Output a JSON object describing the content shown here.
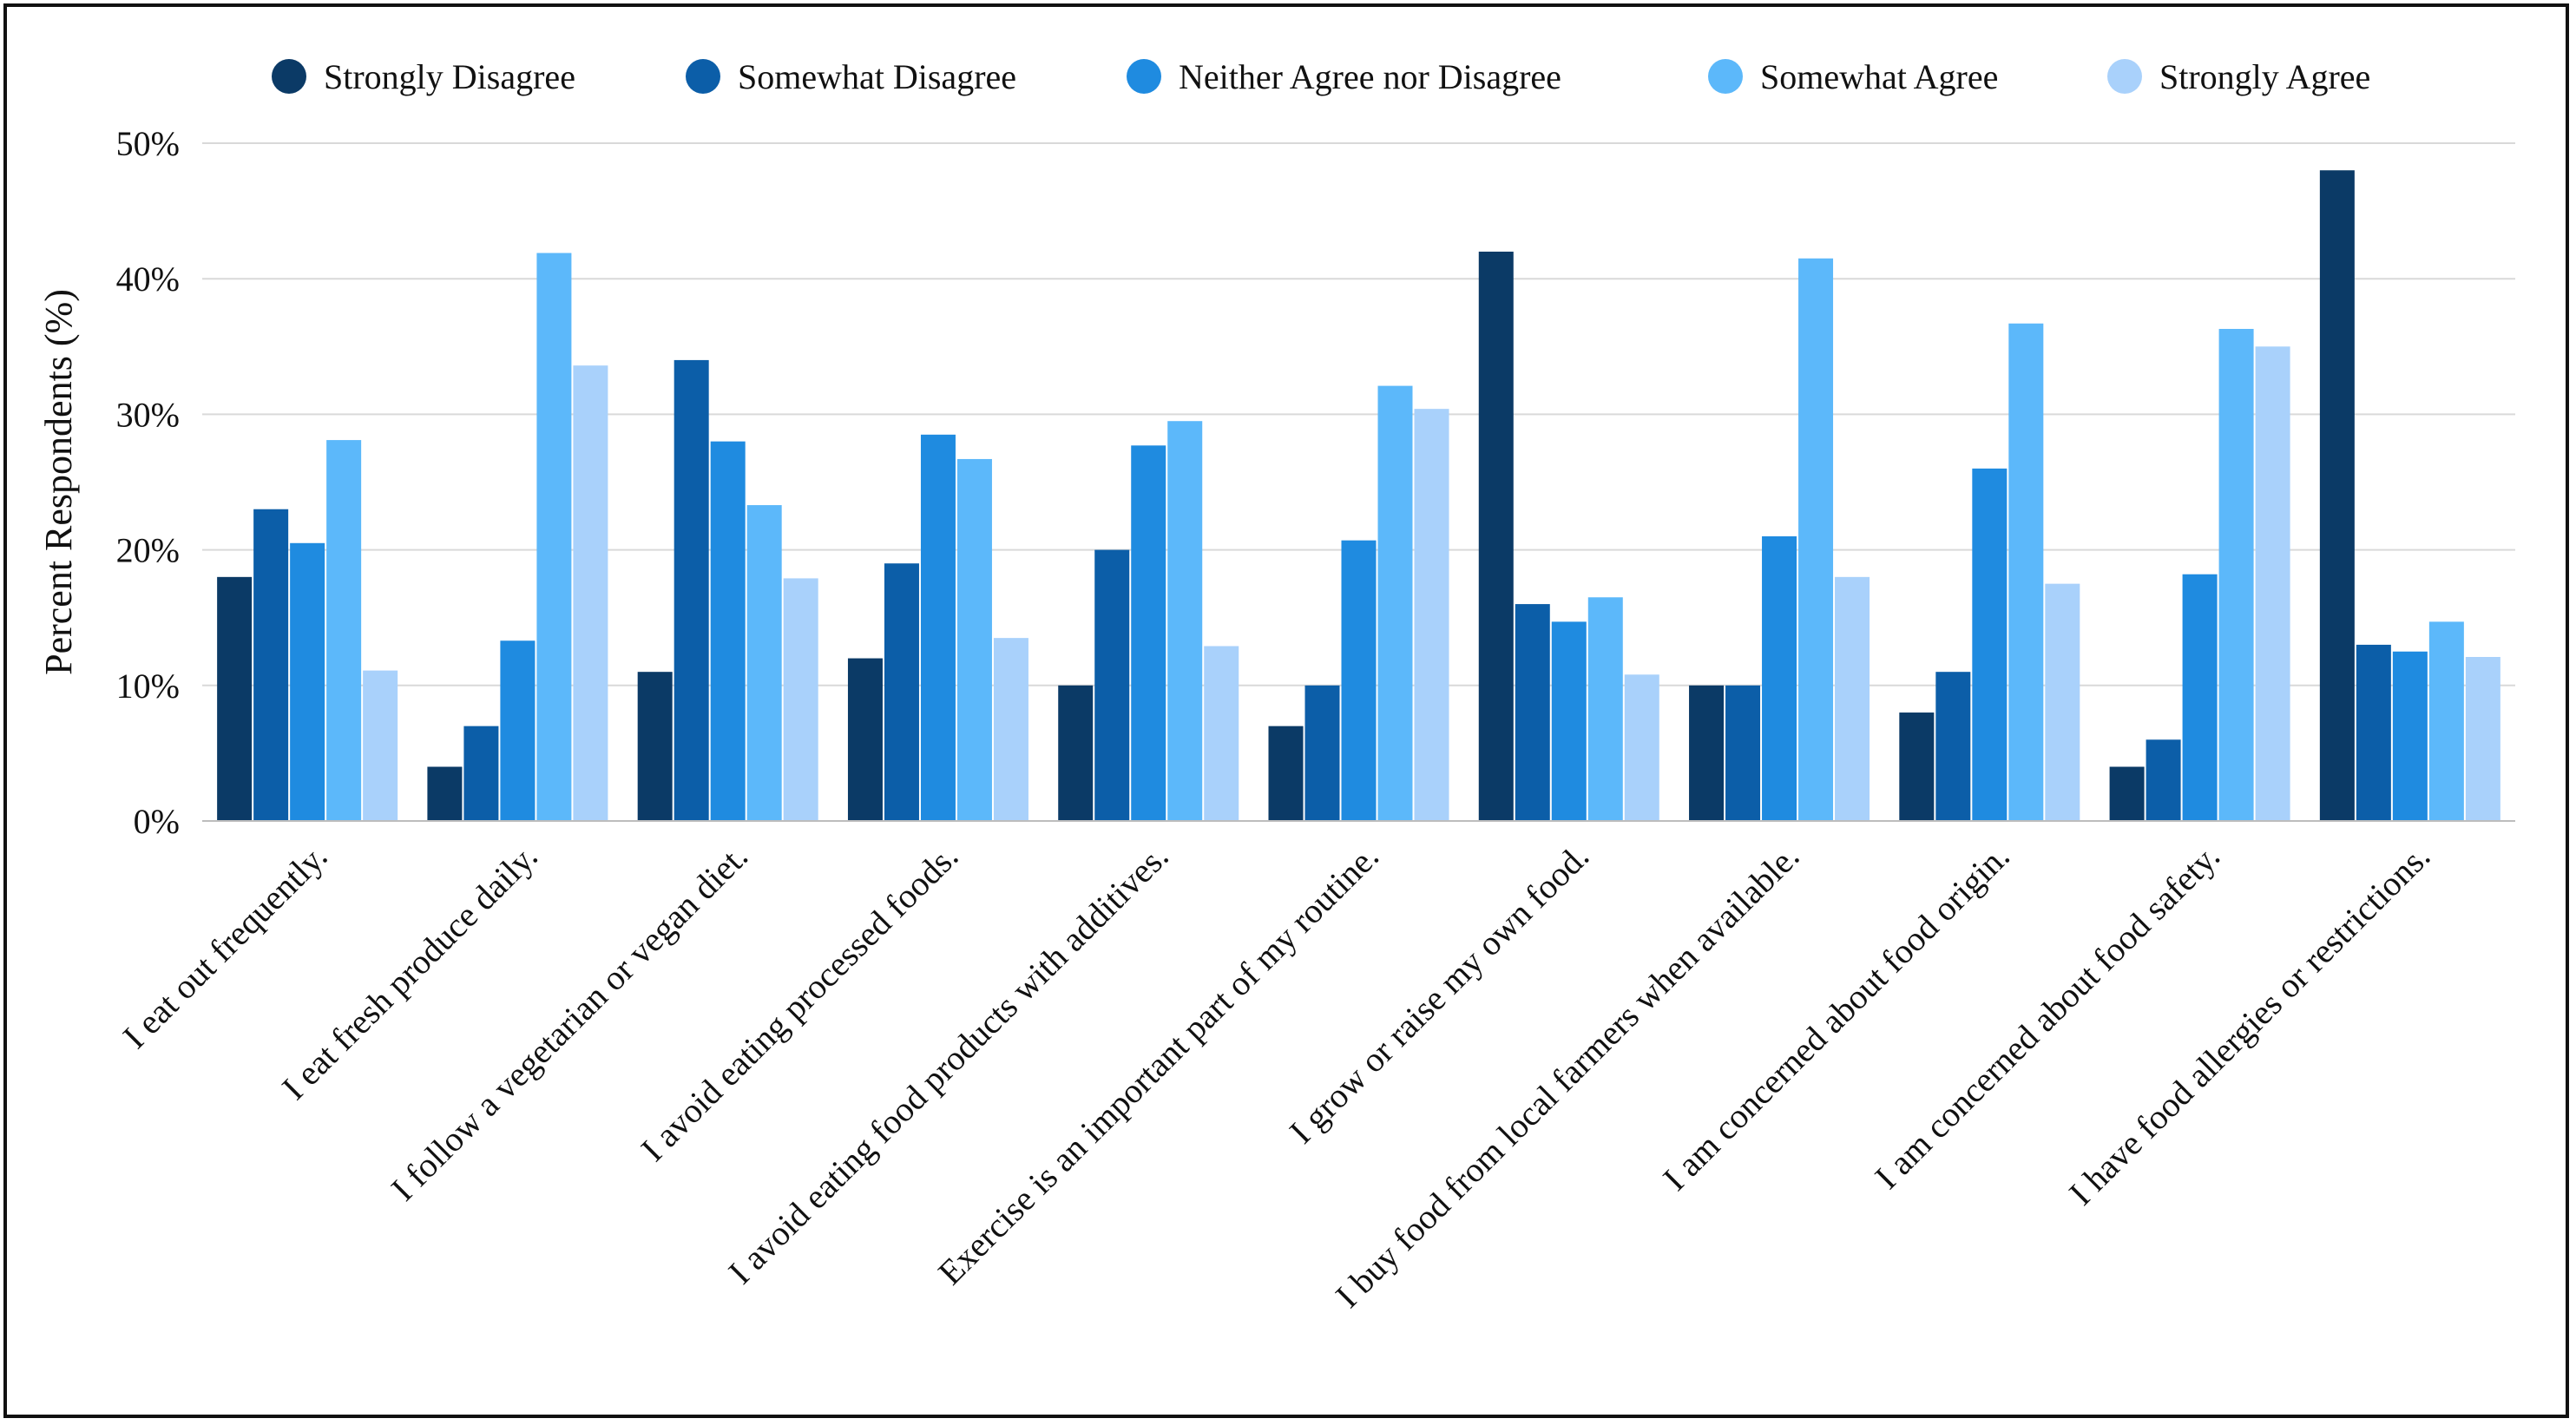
{
  "chart_data": {
    "type": "bar",
    "title": "",
    "xlabel": "",
    "ylabel": "Percent Respondents (%)",
    "ylim": [
      0,
      50
    ],
    "yticks": [
      0,
      10,
      20,
      30,
      40,
      50
    ],
    "ytick_format": "%",
    "grid": true,
    "legend_position": "top",
    "categories": [
      "I eat out frequently.",
      "I eat fresh produce daily.",
      "I follow a vegetarian or vegan diet.",
      "I avoid eating processed foods.",
      "I avoid eating food products with additives.",
      "Exercise is an important part of my routine.",
      "I grow or raise my own food.",
      "I buy food from local farmers when available.",
      "I am concerned about food origin.",
      "I am concerned about food safety.",
      "I have food allergies or restrictions."
    ],
    "series": [
      {
        "name": "Strongly Disagree",
        "color": "#0b3a66",
        "values": [
          18,
          4,
          11,
          12,
          10,
          7,
          42,
          10,
          8,
          4,
          48
        ]
      },
      {
        "name": "Somewhat Disagree",
        "color": "#0c5ea8",
        "values": [
          23,
          7,
          34,
          19,
          20,
          10,
          16,
          10,
          11,
          6,
          13
        ]
      },
      {
        "name": "Neither Agree nor Disagree",
        "color": "#1f8be0",
        "values": [
          20.5,
          13.3,
          28,
          28.5,
          27.7,
          20.7,
          14.7,
          21,
          26,
          18.2,
          12.5
        ]
      },
      {
        "name": "Somewhat Agree",
        "color": "#5cb8fa",
        "values": [
          28.1,
          41.9,
          23.3,
          26.7,
          29.5,
          32.1,
          16.5,
          41.5,
          36.7,
          36.3,
          14.7
        ]
      },
      {
        "name": "Strongly Agree",
        "color": "#a9d1fb",
        "values": [
          11.1,
          33.6,
          17.9,
          13.5,
          12.9,
          30.4,
          10.8,
          18,
          17.5,
          35,
          12.1
        ]
      }
    ]
  }
}
